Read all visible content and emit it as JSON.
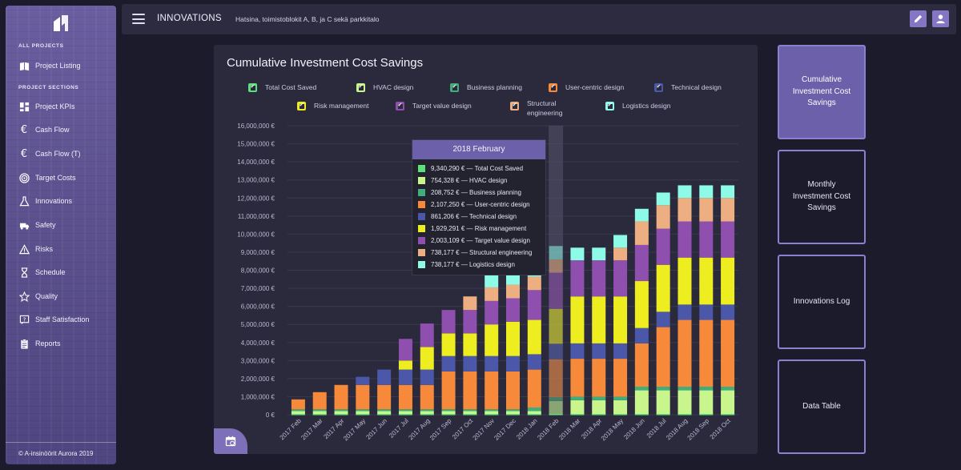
{
  "sidebar": {
    "section_all": "ALL PROJECTS",
    "section_project": "PROJECT SECTIONS",
    "items": [
      {
        "label": "Project Listing",
        "icon": "book-icon"
      },
      {
        "label": "Project KPIs",
        "icon": "dashboard-icon"
      },
      {
        "label": "Cash Flow",
        "icon": "euro-icon"
      },
      {
        "label": "Cash Flow (T)",
        "icon": "euro-icon"
      },
      {
        "label": "Target Costs",
        "icon": "target-icon"
      },
      {
        "label": "Innovations",
        "icon": "flask-icon"
      },
      {
        "label": "Safety",
        "icon": "ambulance-icon"
      },
      {
        "label": "Risks",
        "icon": "warning-icon"
      },
      {
        "label": "Schedule",
        "icon": "hourglass-icon"
      },
      {
        "label": "Quality",
        "icon": "star-icon"
      },
      {
        "label": "Staff Satisfaction",
        "icon": "question-icon"
      },
      {
        "label": "Reports",
        "icon": "clipboard-icon"
      }
    ],
    "footer": "© A-insinöörit Aurora 2019"
  },
  "topbar": {
    "title": "INNOVATIONS",
    "subtitle": "Hatsina, toimistoblokit A, B, ja C sekä parkkitalo"
  },
  "colors": {
    "accent": "#6d60aa",
    "series": [
      "#5be07a",
      "#c8f58c",
      "#3fae7c",
      "#f78a3a",
      "#4b57a8",
      "#eded1f",
      "#8f4fae",
      "#edaf82",
      "#8dfbe6"
    ]
  },
  "chart_data": {
    "type": "bar",
    "stacked": true,
    "title": "Cumulative Investment Cost Savings",
    "ylim": [
      0,
      16000000
    ],
    "yticks": [
      "0 €",
      "1,000,000 €",
      "2,000,000 €",
      "3,000,000 €",
      "4,000,000 €",
      "5,000,000 €",
      "6,000,000 €",
      "7,000,000 €",
      "8,000,000 €",
      "9,000,000 €",
      "10,000,000 €",
      "11,000,000 €",
      "12,000,000 €",
      "13,000,000 €",
      "14,000,000 €",
      "15,000,000 €",
      "16,000,000 €"
    ],
    "categories": [
      "2017 Feb",
      "2017 Mar",
      "2017 Apr",
      "2017 May",
      "2017 Jun",
      "2017 Jul",
      "2017 Aug",
      "2017 Sep",
      "2017 Oct",
      "2017 Nov",
      "2017 Dec",
      "2018 Jan",
      "2018 Feb",
      "2018 Mar",
      "2018 Apr",
      "2018 May",
      "2018 Jun",
      "2018 Jul",
      "2018 Aug",
      "2018 Sep",
      "2018 Oct"
    ],
    "highlight_index": 12,
    "series": [
      {
        "name": "HVAC design",
        "values": [
          200000,
          200000,
          200000,
          200000,
          200000,
          200000,
          200000,
          200000,
          200000,
          200000,
          200000,
          200000,
          754328,
          800000,
          800000,
          800000,
          1350000,
          1350000,
          1350000,
          1350000,
          1350000
        ]
      },
      {
        "name": "Business planning",
        "values": [
          100000,
          100000,
          100000,
          100000,
          100000,
          100000,
          100000,
          100000,
          100000,
          100000,
          100000,
          200000,
          208752,
          200000,
          200000,
          200000,
          200000,
          200000,
          200000,
          200000,
          200000
        ]
      },
      {
        "name": "User-centric design",
        "values": [
          550000,
          950000,
          1350000,
          1350000,
          1350000,
          1350000,
          1350000,
          2100000,
          2100000,
          2100000,
          2100000,
          2100000,
          2107250,
          2100000,
          2100000,
          2100000,
          2400000,
          3300000,
          3700000,
          3700000,
          3700000
        ]
      },
      {
        "name": "Technical design",
        "values": [
          0,
          0,
          0,
          450000,
          850000,
          850000,
          850000,
          850000,
          850000,
          850000,
          850000,
          850000,
          861206,
          850000,
          850000,
          850000,
          850000,
          850000,
          850000,
          850000,
          850000
        ]
      },
      {
        "name": "Risk management",
        "values": [
          0,
          0,
          0,
          0,
          0,
          500000,
          1250000,
          1250000,
          1250000,
          1750000,
          1900000,
          1900000,
          1929291,
          2600000,
          2600000,
          2600000,
          2600000,
          2600000,
          2600000,
          2600000,
          2600000
        ]
      },
      {
        "name": "Target value design",
        "values": [
          0,
          0,
          0,
          0,
          0,
          1200000,
          1300000,
          1300000,
          1300000,
          1300000,
          1300000,
          1650000,
          2003109,
          2000000,
          2000000,
          2000000,
          2000000,
          2000000,
          2000000,
          2000000,
          2000000
        ]
      },
      {
        "name": "Structural engineering",
        "values": [
          0,
          0,
          0,
          0,
          0,
          0,
          0,
          0,
          750000,
          750000,
          750000,
          750000,
          738177,
          0,
          0,
          700000,
          1300000,
          1300000,
          1300000,
          1300000,
          1300000
        ]
      },
      {
        "name": "Logistics design",
        "values": [
          0,
          0,
          0,
          0,
          0,
          0,
          0,
          0,
          0,
          750000,
          750000,
          750000,
          738177,
          700000,
          700000,
          700000,
          700000,
          700000,
          700000,
          700000,
          700000
        ]
      }
    ],
    "legend": [
      {
        "label": "Total Cost Saved",
        "color": "#5be07a"
      },
      {
        "label": "HVAC design",
        "color": "#c8f58c"
      },
      {
        "label": "Business planning",
        "color": "#3fae7c"
      },
      {
        "label": "User-centric design",
        "color": "#f78a3a"
      },
      {
        "label": "Technical design",
        "color": "#4b57a8"
      },
      {
        "label": "Risk management",
        "color": "#eded1f"
      },
      {
        "label": "Target value design",
        "color": "#8f4fae"
      },
      {
        "label": "Structural engineering",
        "color": "#edaf82"
      },
      {
        "label": "Logistics design",
        "color": "#8dfbe6"
      }
    ],
    "tooltip": {
      "title": "2018 February",
      "rows": [
        {
          "text": "9,340,290 € — Total Cost Saved",
          "color": "#5be07a"
        },
        {
          "text": "754,328 € — HVAC design",
          "color": "#c8f58c"
        },
        {
          "text": "208,752 € — Business planning",
          "color": "#3fae7c"
        },
        {
          "text": "2,107,250 € — User-centric design",
          "color": "#f78a3a"
        },
        {
          "text": "861,206 € — Technical design",
          "color": "#4b57a8"
        },
        {
          "text": "1,929,291 € — Risk management",
          "color": "#eded1f"
        },
        {
          "text": "2,003,109 € — Target value design",
          "color": "#8f4fae"
        },
        {
          "text": "738,177 € — Structural engineering",
          "color": "#edaf82"
        },
        {
          "text": "738,177 € — Logistics design",
          "color": "#8dfbe6"
        }
      ]
    }
  },
  "panels": [
    {
      "label": "Cumulative Investment Cost Savings",
      "active": true
    },
    {
      "label": "Monthly Investment Cost Savings",
      "active": false
    },
    {
      "label": "Innovations Log",
      "active": false
    },
    {
      "label": "Data Table",
      "active": false
    }
  ]
}
